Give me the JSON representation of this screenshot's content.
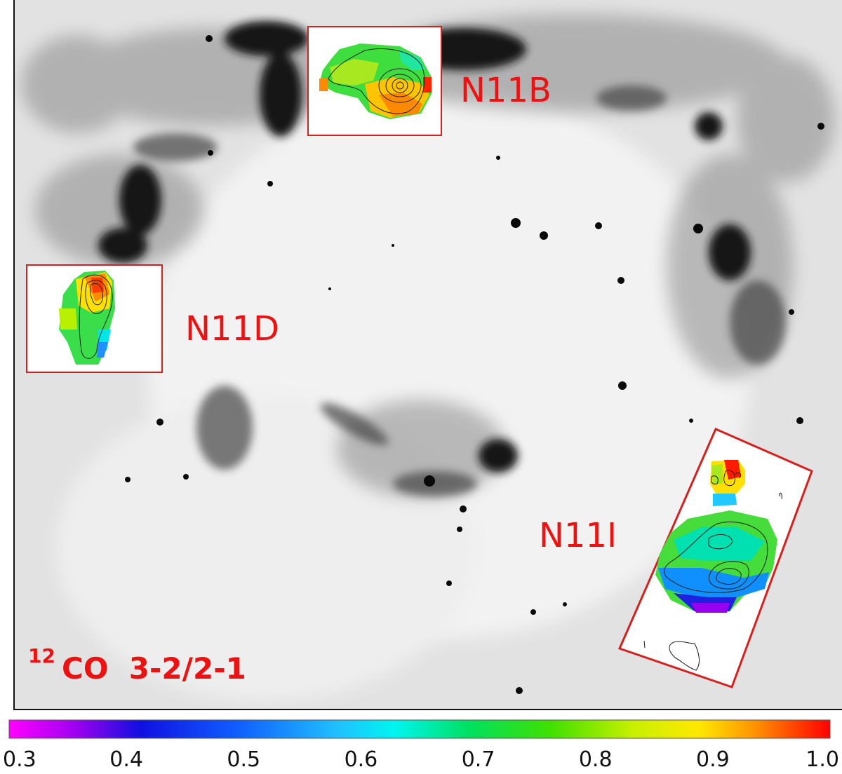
{
  "regions": [
    {
      "id": "N11B",
      "label": "N11B"
    },
    {
      "id": "N11D",
      "label": "N11D"
    },
    {
      "id": "N11I",
      "label": "N11I"
    }
  ],
  "ratio_label": {
    "superscript": "12",
    "text": "CO  3-2/2-1"
  },
  "colorbar": {
    "range": [
      0.3,
      1.0
    ],
    "ticks": [
      "0.3",
      "0.4",
      "0.5",
      "0.6",
      "0.7",
      "0.8",
      "0.9",
      "1.0"
    ],
    "tick_values": [
      0.3,
      0.4,
      0.5,
      0.6,
      0.7,
      0.8,
      0.9,
      1.0
    ],
    "colormap": [
      "#ff00ff",
      "#7a00e8",
      "#0000e8",
      "#1e90ff",
      "#00f2f2",
      "#00e070",
      "#55e000",
      "#ffee00",
      "#ff8c00",
      "#ff0000"
    ]
  },
  "colors": {
    "accent": "#ee1111",
    "contour": "#111111",
    "nebula_dark": "#111111"
  }
}
